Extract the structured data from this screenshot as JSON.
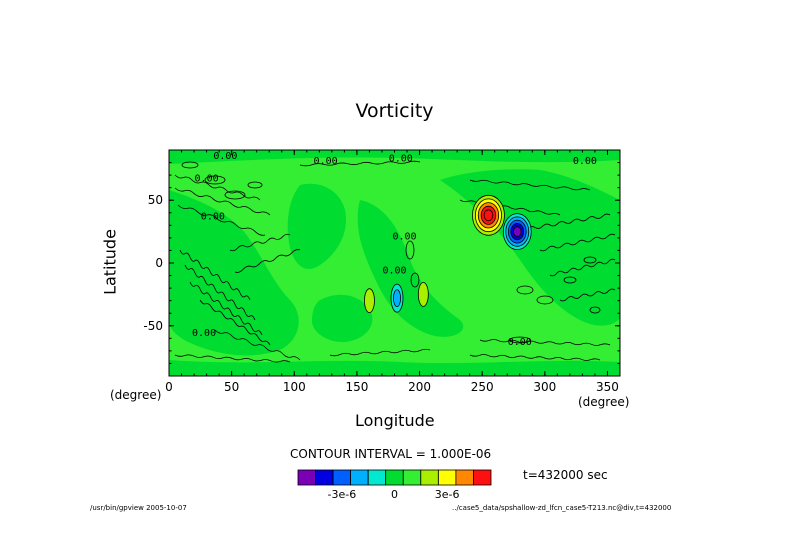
{
  "chart_data": {
    "type": "heatmap",
    "title": "Vorticity",
    "xlabel": "Longitude",
    "ylabel": "Latitude",
    "x_unit_left": "(degree)",
    "x_unit_right": "(degree)",
    "xlim": [
      0,
      360
    ],
    "ylim": [
      -90,
      90
    ],
    "xticks": [
      0,
      50,
      100,
      150,
      200,
      250,
      300,
      350
    ],
    "yticks": [
      -50,
      0,
      50
    ],
    "contour_labels": [
      {
        "text": "0.00",
        "x": 45,
        "y": 86
      },
      {
        "text": "0.00",
        "x": 125,
        "y": 82
      },
      {
        "text": "0.00",
        "x": 185,
        "y": 84
      },
      {
        "text": "0.00",
        "x": 332,
        "y": 82
      },
      {
        "text": "0.00",
        "x": 30,
        "y": 68
      },
      {
        "text": "0.00",
        "x": 35,
        "y": 38
      },
      {
        "text": "0.00",
        "x": 28,
        "y": -55
      },
      {
        "text": "0.00",
        "x": 188,
        "y": 22
      },
      {
        "text": "0.00",
        "x": 180,
        "y": -5
      },
      {
        "text": "0.00",
        "x": 280,
        "y": -62
      }
    ],
    "anomalies": [
      {
        "kind": "positive",
        "lon": 255,
        "lat": 38,
        "peak": 5e-06
      },
      {
        "kind": "negative",
        "lon": 278,
        "lat": 25,
        "peak": -5e-06
      },
      {
        "kind": "positive",
        "lon": 160,
        "lat": -30,
        "peak": 1e-06
      },
      {
        "kind": "negative",
        "lon": 182,
        "lat": -28,
        "peak": -2e-06
      },
      {
        "kind": "positive",
        "lon": 203,
        "lat": -25,
        "peak": 1e-06
      }
    ],
    "colorbar": {
      "colors": [
        "#7a00b8",
        "#0000e0",
        "#0060ff",
        "#00b0ff",
        "#00e8d0",
        "#00dd30",
        "#33ee33",
        "#aaee00",
        "#ffff00",
        "#ff8800",
        "#ff1010"
      ],
      "tick_labels": [
        "-3e-6",
        "0",
        "3e-6"
      ],
      "tick_values": [
        -3e-06,
        0,
        3e-06
      ]
    },
    "contour_interval": "CONTOUR INTERVAL = 1.000E-06",
    "time_label": "t=432000 sec"
  },
  "footer": {
    "left": "/usr/bin/gpview  2005-10-07",
    "right": "../case5_data/spshallow-zd_lfcn_case5-T213.nc@div,t=432000"
  },
  "colors": {
    "background_green": "#00dd30",
    "light_green": "#33ee33",
    "cyan": "#00b0ff",
    "plot_bg": "#33ee33"
  }
}
